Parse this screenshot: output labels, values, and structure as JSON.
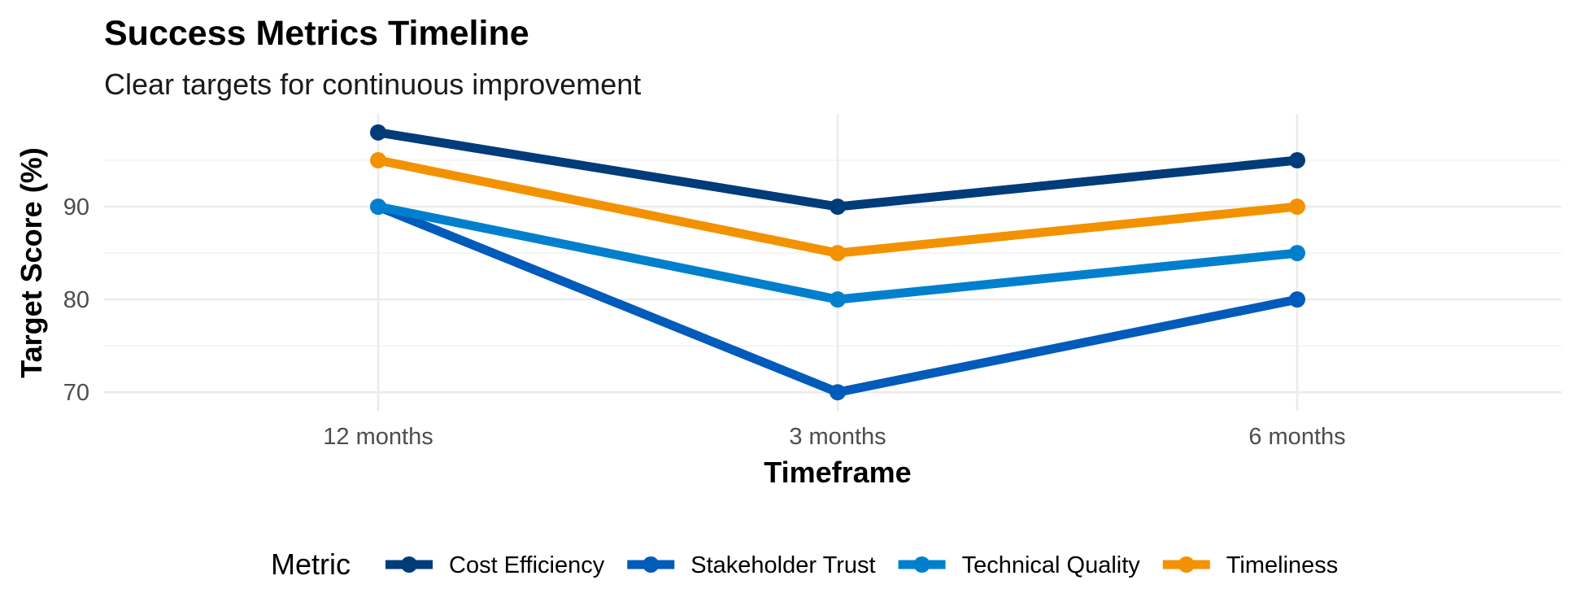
{
  "chart_data": {
    "type": "line",
    "title": "Success Metrics Timeline",
    "subtitle": "Clear targets for continuous improvement",
    "xlabel": "Timeframe",
    "ylabel": "Target Score (%)",
    "categories": [
      "12 months",
      "3 months",
      "6 months"
    ],
    "y_ticks": [
      70,
      80,
      90
    ],
    "ylim": [
      68,
      100
    ],
    "grid": true,
    "legend": {
      "title": "Metric",
      "position": "bottom"
    },
    "series": [
      {
        "name": "Cost Efficiency",
        "color": "#003B7A",
        "values": [
          98,
          90,
          95
        ]
      },
      {
        "name": "Stakeholder Trust",
        "color": "#005BBB",
        "values": [
          90,
          70,
          80
        ]
      },
      {
        "name": "Technical Quality",
        "color": "#0080CC",
        "values": [
          90,
          80,
          85
        ]
      },
      {
        "name": "Timeliness",
        "color": "#F39200",
        "values": [
          95,
          85,
          90
        ]
      }
    ]
  }
}
